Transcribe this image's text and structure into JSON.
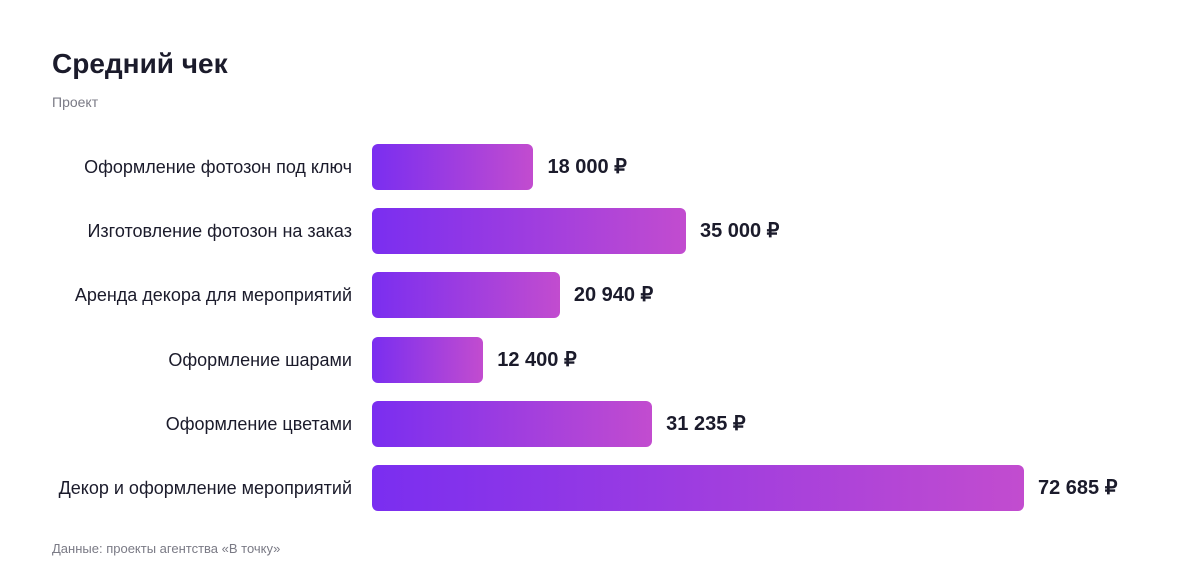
{
  "chart_data": {
    "type": "bar",
    "orientation": "horizontal",
    "title": "Средний чек",
    "subtitle": "Проект",
    "source": "Данные: проекты агентства «В точку»",
    "categories": [
      "Оформление фотозон под ключ",
      "Изготовление фотозон на заказ",
      "Аренда декора для мероприятий",
      "Оформление шарами",
      "Оформление цветами",
      "Декор и оформление мероприятий"
    ],
    "values": [
      18000,
      35000,
      20940,
      12400,
      31235,
      72685
    ],
    "value_labels": [
      "18 000 ₽",
      "35 000 ₽",
      "20 940 ₽",
      "12 400 ₽",
      "31 235 ₽",
      "72 685 ₽"
    ],
    "gradient": [
      "#7a2ef0",
      "#c24ccf"
    ]
  }
}
